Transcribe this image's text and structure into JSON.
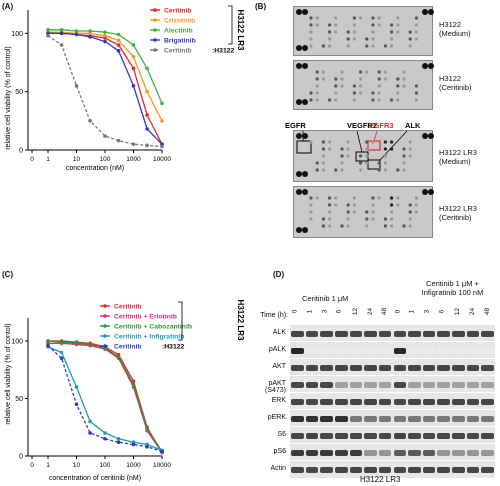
{
  "panel_a": {
    "label": "(A)",
    "ylabel": "relative cell viability (% of control)",
    "xlabel": "concentration (nM)",
    "yticks": [
      "0",
      "50",
      "100"
    ],
    "xticks": [
      "0",
      "1",
      "10",
      "100",
      "1000",
      "10000"
    ],
    "legend": [
      {
        "name": "Ceritinib",
        "color": "#e8252d"
      },
      {
        "name": "Crizotinib",
        "color": "#f59a1d"
      },
      {
        "name": "Alectinib",
        "color": "#3db43a"
      },
      {
        "name": "Brigatinib",
        "color": "#2b3bc8"
      },
      {
        "name": "Ceritinib",
        "color": "#777777",
        "suffix": ":H3122"
      }
    ],
    "group_label": "H3122 LR3"
  },
  "panel_b": {
    "label": "(B)",
    "blots": [
      {
        "l1": "H3122",
        "l2": "(Medium)"
      },
      {
        "l1": "H3122",
        "l2": "(Ceritinib)"
      },
      {
        "l1": "H3122 LR3",
        "l2": "(Medium)"
      },
      {
        "l1": "H3122 LR3",
        "l2": "(Ceritinib)"
      }
    ],
    "callouts": {
      "egfr": "EGFR",
      "vegfr2": "VEGFR2",
      "fgfr3": "FGFR3",
      "alk": "ALK"
    }
  },
  "panel_c": {
    "label": "(C)",
    "ylabel": "relative cell viability (% of contol)",
    "xlabel": "concentration of ceritinib (nM)",
    "yticks": [
      "0",
      "50",
      "100"
    ],
    "xticks": [
      "0",
      "1",
      "10",
      "100",
      "1000",
      "10000"
    ],
    "legend": [
      {
        "name": "Ceritinib",
        "color": "#e8252d"
      },
      {
        "name": "Ceritinib + Erlotinib",
        "color": "#e6287a"
      },
      {
        "name": "Ceritinib + Cabozantinib",
        "color": "#2b9a2b"
      },
      {
        "name": "Ceritinib + Infigratinib",
        "color": "#1a9db0"
      },
      {
        "name": "Ceritinib",
        "color": "#2b3bc8",
        "suffix": ":H3122"
      }
    ],
    "group_label": "H3122 LR3"
  },
  "panel_d": {
    "label": "(D)",
    "cond1": "Ceritinib 1 μM",
    "cond2_l1": "Ceritinib 1 μM +",
    "cond2_l2": "Infigratinib 100 nM",
    "time_label": "Time (h):",
    "times": [
      "0",
      "1",
      "3",
      "6",
      "12",
      "24",
      "48",
      "0",
      "1",
      "3",
      "6",
      "12",
      "24",
      "48"
    ],
    "rows": [
      "ALK",
      "pALK",
      "AKT",
      "pAKT (S473)",
      "ERK",
      "pERK",
      "S6",
      "pS6",
      "Actin"
    ],
    "footer": "H3122 LR3"
  },
  "chart_data": [
    {
      "type": "line",
      "title": "",
      "xlabel": "concentration (nM)",
      "ylabel": "relative cell viability (% of control)",
      "xscale": "log",
      "ylim": [
        0,
        120
      ],
      "series": [
        {
          "name": "Ceritinib",
          "color": "#e8252d",
          "x": [
            1,
            3,
            10,
            30,
            100,
            300,
            1000,
            3000,
            10000
          ],
          "y": [
            100,
            100,
            99,
            98,
            96,
            90,
            70,
            30,
            5
          ]
        },
        {
          "name": "Crizotinib",
          "color": "#f59a1d",
          "x": [
            1,
            3,
            10,
            30,
            100,
            300,
            1000,
            3000,
            10000
          ],
          "y": [
            101,
            101,
            100,
            100,
            98,
            94,
            80,
            50,
            25
          ]
        },
        {
          "name": "Alectinib",
          "color": "#3db43a",
          "x": [
            1,
            3,
            10,
            30,
            100,
            300,
            1000,
            3000,
            10000
          ],
          "y": [
            103,
            103,
            102,
            102,
            101,
            99,
            90,
            70,
            40
          ]
        },
        {
          "name": "Brigatinib",
          "color": "#2b3bc8",
          "x": [
            1,
            3,
            10,
            30,
            100,
            300,
            1000,
            3000,
            10000
          ],
          "y": [
            100,
            100,
            99,
            97,
            93,
            85,
            55,
            18,
            5
          ]
        },
        {
          "name": "Ceritinib",
          "color": "#777777",
          "x": [
            1,
            3,
            10,
            30,
            100,
            300,
            1000,
            3000,
            10000
          ],
          "y": [
            98,
            90,
            55,
            25,
            12,
            8,
            5,
            4,
            3
          ]
        }
      ]
    },
    {
      "type": "line",
      "title": "",
      "xlabel": "concentration of ceritinib (nM)",
      "ylabel": "relative cell viability (% of contol)",
      "xscale": "log",
      "ylim": [
        0,
        120
      ],
      "series": [
        {
          "name": "Ceritinib",
          "color": "#e8252d",
          "x": [
            1,
            3,
            10,
            30,
            100,
            300,
            1000,
            3000,
            10000
          ],
          "y": [
            100,
            100,
            99,
            98,
            95,
            88,
            65,
            25,
            3
          ]
        },
        {
          "name": "Ceritinib + Erlotinib",
          "color": "#e6287a",
          "x": [
            1,
            3,
            10,
            30,
            100,
            300,
            1000,
            3000,
            10000
          ],
          "y": [
            98,
            98,
            97,
            96,
            93,
            85,
            60,
            22,
            3
          ]
        },
        {
          "name": "Ceritinib + Cabozantinib",
          "color": "#2b9a2b",
          "x": [
            1,
            3,
            10,
            30,
            100,
            300,
            1000,
            3000,
            10000
          ],
          "y": [
            100,
            99,
            98,
            97,
            94,
            86,
            62,
            24,
            4
          ]
        },
        {
          "name": "Ceritinib + Infigratinib",
          "color": "#1a9db0",
          "x": [
            1,
            3,
            10,
            30,
            100,
            300,
            1000,
            3000,
            10000
          ],
          "y": [
            95,
            90,
            60,
            30,
            20,
            15,
            12,
            10,
            5
          ]
        },
        {
          "name": "Ceritinib",
          "color": "#2b3bc8",
          "x": [
            1,
            3,
            10,
            30,
            100,
            300,
            1000,
            3000,
            10000
          ],
          "y": [
            96,
            85,
            45,
            20,
            15,
            12,
            10,
            8,
            4
          ]
        }
      ]
    }
  ]
}
